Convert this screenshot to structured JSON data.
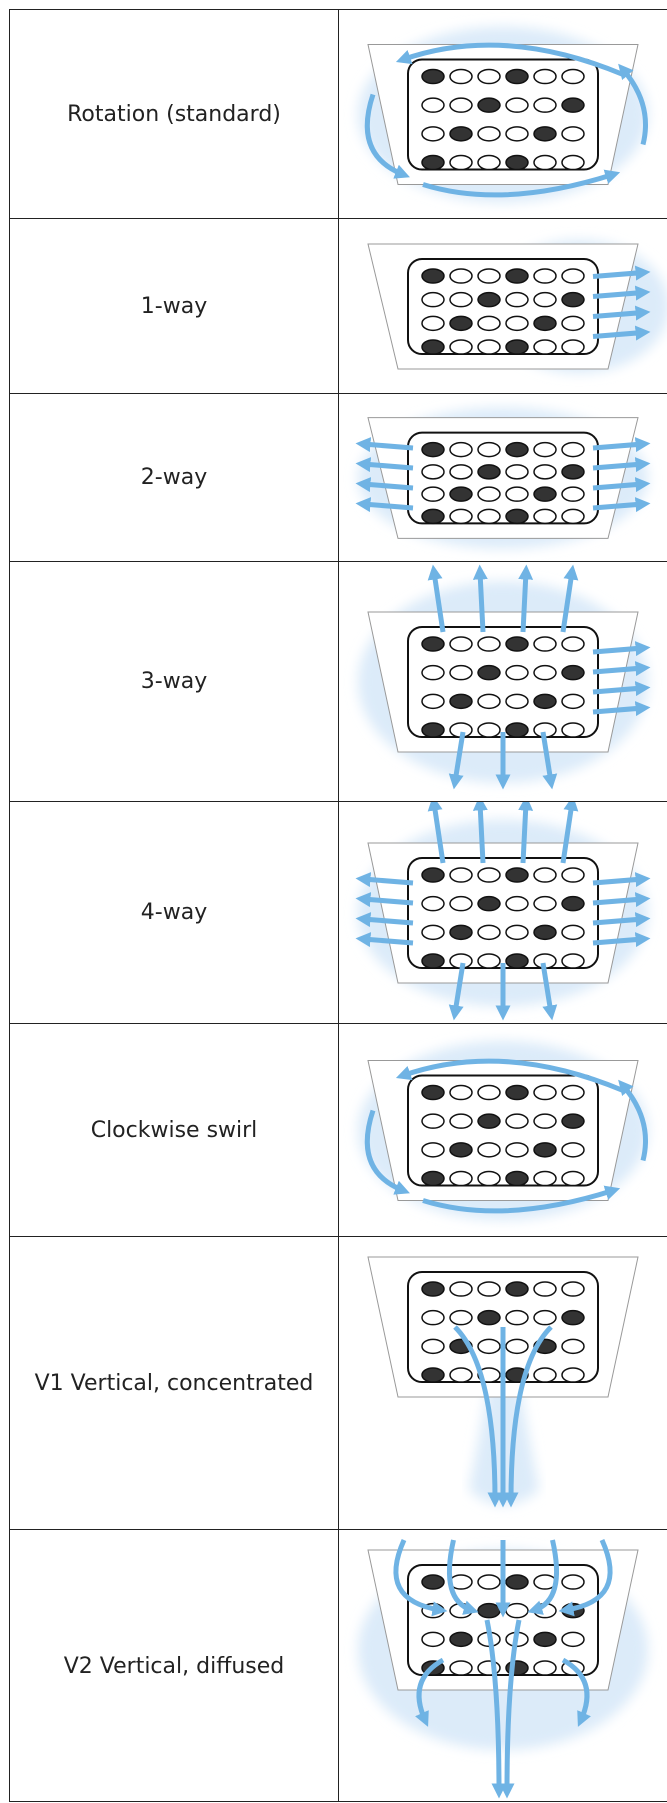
{
  "table": {
    "rows": [
      {
        "label": "Rotation (standard)"
      },
      {
        "label": "1-way"
      },
      {
        "label": "2-way"
      },
      {
        "label": "3-way"
      },
      {
        "label": "4-way"
      },
      {
        "label": "Clockwise swirl"
      },
      {
        "label": "V1 Vertical, concentrated"
      },
      {
        "label": "V2 Vertical, diffused"
      }
    ]
  }
}
